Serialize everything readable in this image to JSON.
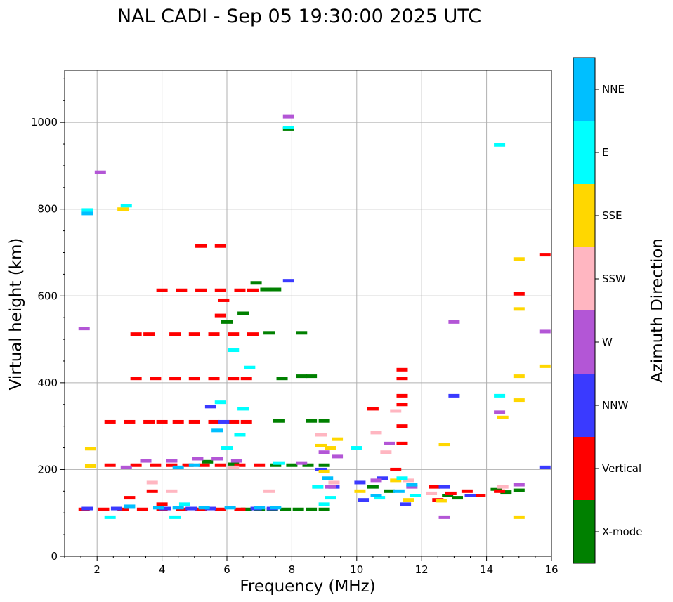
{
  "chart_data": {
    "type": "scatter",
    "title": "NAL CADI - Sep 05 19:30:00 2025 UTC",
    "xlabel": "Frequency (MHz)",
    "ylabel": "Virtual height (km)",
    "xlim": [
      1,
      16
    ],
    "ylim": [
      0,
      1120
    ],
    "xticks": [
      "2",
      "4",
      "6",
      "8",
      "10",
      "12",
      "14",
      "16"
    ],
    "yticks": [
      "0",
      "200",
      "400",
      "600",
      "800",
      "1000"
    ],
    "grid": true,
    "colorbar": {
      "label": "Azimuth Direction",
      "categories": [
        "X-mode",
        "Vertical",
        "NNW",
        "W",
        "SSW",
        "SSE",
        "E",
        "NNE"
      ],
      "colors": [
        "#008000",
        "#ff0000",
        "#3a3aff",
        "#b356d6",
        "#ffb6c1",
        "#ffd700",
        "#00ffff",
        "#00bfff"
      ]
    },
    "series": [
      {
        "name": "X-mode",
        "points": [
          [
            6.6,
            108
          ],
          [
            7.0,
            108
          ],
          [
            7.4,
            108
          ],
          [
            7.8,
            108
          ],
          [
            8.2,
            108
          ],
          [
            8.6,
            108
          ],
          [
            9.0,
            108
          ],
          [
            8.0,
            210
          ],
          [
            8.5,
            210
          ],
          [
            9.0,
            210
          ],
          [
            7.5,
            210
          ],
          [
            7.3,
            515
          ],
          [
            8.3,
            515
          ],
          [
            8.6,
            415
          ],
          [
            8.3,
            415
          ],
          [
            7.7,
            410
          ],
          [
            9.0,
            312
          ],
          [
            8.6,
            312
          ],
          [
            7.6,
            312
          ],
          [
            6.0,
            540
          ],
          [
            6.5,
            560
          ],
          [
            5.4,
            218
          ],
          [
            6.2,
            212
          ],
          [
            11.0,
            150
          ],
          [
            14.3,
            155
          ],
          [
            14.6,
            148
          ],
          [
            12.8,
            140
          ],
          [
            13.1,
            135
          ],
          [
            15.0,
            152
          ],
          [
            7.2,
            615
          ],
          [
            7.5,
            615
          ],
          [
            6.9,
            630
          ],
          [
            10.5,
            160
          ],
          [
            7.9,
            985
          ]
        ]
      },
      {
        "name": "Vertical",
        "points": [
          [
            1.6,
            108
          ],
          [
            2.2,
            108
          ],
          [
            2.8,
            108
          ],
          [
            3.4,
            108
          ],
          [
            4.0,
            108
          ],
          [
            4.6,
            108
          ],
          [
            5.2,
            108
          ],
          [
            5.8,
            108
          ],
          [
            6.4,
            108
          ],
          [
            2.4,
            210
          ],
          [
            3.2,
            210
          ],
          [
            3.8,
            210
          ],
          [
            4.3,
            210
          ],
          [
            4.8,
            210
          ],
          [
            5.3,
            210
          ],
          [
            5.8,
            210
          ],
          [
            6.4,
            210
          ],
          [
            7.0,
            210
          ],
          [
            2.4,
            310
          ],
          [
            3.0,
            310
          ],
          [
            3.6,
            310
          ],
          [
            4.0,
            310
          ],
          [
            4.5,
            310
          ],
          [
            5.0,
            310
          ],
          [
            5.6,
            310
          ],
          [
            6.2,
            310
          ],
          [
            6.6,
            310
          ],
          [
            3.2,
            410
          ],
          [
            3.8,
            410
          ],
          [
            4.4,
            410
          ],
          [
            5.0,
            410
          ],
          [
            5.6,
            410
          ],
          [
            6.2,
            410
          ],
          [
            6.6,
            410
          ],
          [
            3.2,
            512
          ],
          [
            3.6,
            512
          ],
          [
            4.4,
            512
          ],
          [
            5.0,
            512
          ],
          [
            5.6,
            512
          ],
          [
            6.2,
            512
          ],
          [
            6.8,
            512
          ],
          [
            4.0,
            613
          ],
          [
            4.6,
            613
          ],
          [
            5.2,
            613
          ],
          [
            5.8,
            613
          ],
          [
            6.4,
            613
          ],
          [
            6.8,
            613
          ],
          [
            5.2,
            715
          ],
          [
            5.8,
            715
          ],
          [
            11.4,
            430
          ],
          [
            11.4,
            410
          ],
          [
            11.4,
            370
          ],
          [
            11.4,
            350
          ],
          [
            11.4,
            300
          ],
          [
            11.4,
            260
          ],
          [
            10.5,
            340
          ],
          [
            11.2,
            200
          ],
          [
            12.4,
            160
          ],
          [
            12.9,
            145
          ],
          [
            13.4,
            150
          ],
          [
            13.8,
            140
          ],
          [
            14.4,
            150
          ],
          [
            15.0,
            605
          ],
          [
            15.8,
            695
          ],
          [
            3.0,
            135
          ],
          [
            3.7,
            150
          ],
          [
            4.0,
            120
          ],
          [
            5.9,
            590
          ],
          [
            5.8,
            555
          ],
          [
            12.5,
            130
          ]
        ]
      },
      {
        "name": "NNW",
        "points": [
          [
            1.7,
            110
          ],
          [
            2.6,
            110
          ],
          [
            4.1,
            110
          ],
          [
            4.9,
            110
          ],
          [
            5.5,
            110
          ],
          [
            6.9,
            110
          ],
          [
            7.4,
            110
          ],
          [
            5.5,
            345
          ],
          [
            9.3,
            160
          ],
          [
            10.2,
            130
          ],
          [
            10.8,
            180
          ],
          [
            11.5,
            120
          ],
          [
            12.7,
            160
          ],
          [
            13.0,
            370
          ],
          [
            13.5,
            140
          ],
          [
            15.8,
            205
          ],
          [
            7.9,
            635
          ],
          [
            5.9,
            310
          ],
          [
            8.9,
            200
          ],
          [
            10.1,
            170
          ]
        ]
      },
      {
        "name": "W",
        "points": [
          [
            1.6,
            525
          ],
          [
            2.1,
            885
          ],
          [
            2.9,
            205
          ],
          [
            3.5,
            220
          ],
          [
            4.3,
            220
          ],
          [
            5.1,
            225
          ],
          [
            5.7,
            225
          ],
          [
            6.3,
            220
          ],
          [
            9.0,
            240
          ],
          [
            9.4,
            230
          ],
          [
            10.6,
            175
          ],
          [
            11.0,
            260
          ],
          [
            13.0,
            540
          ],
          [
            12.7,
            90
          ],
          [
            14.4,
            332
          ],
          [
            15.0,
            165
          ],
          [
            15.8,
            518
          ],
          [
            7.9,
            1013
          ],
          [
            9.2,
            160
          ],
          [
            11.7,
            160
          ],
          [
            8.3,
            215
          ]
        ]
      },
      {
        "name": "SSW",
        "points": [
          [
            3.7,
            170
          ],
          [
            4.3,
            150
          ],
          [
            6.2,
            205
          ],
          [
            7.3,
            150
          ],
          [
            8.9,
            280
          ],
          [
            9.3,
            170
          ],
          [
            10.9,
            240
          ],
          [
            11.2,
            335
          ],
          [
            11.6,
            175
          ],
          [
            12.3,
            145
          ],
          [
            14.5,
            160
          ],
          [
            10.6,
            285
          ],
          [
            8.8,
            160
          ]
        ]
      },
      {
        "name": "SSE",
        "points": [
          [
            1.8,
            248
          ],
          [
            1.8,
            208
          ],
          [
            2.8,
            800
          ],
          [
            8.9,
            255
          ],
          [
            9.2,
            250
          ],
          [
            9.4,
            270
          ],
          [
            11.2,
            175
          ],
          [
            12.7,
            258
          ],
          [
            12.6,
            128
          ],
          [
            14.5,
            320
          ],
          [
            15.0,
            685
          ],
          [
            15.0,
            570
          ],
          [
            15.0,
            415
          ],
          [
            15.0,
            360
          ],
          [
            15.8,
            438
          ],
          [
            15.0,
            90
          ],
          [
            11.6,
            130
          ],
          [
            9.0,
            195
          ],
          [
            10.1,
            150
          ]
        ]
      },
      {
        "name": "E",
        "points": [
          [
            1.7,
            798
          ],
          [
            2.9,
            808
          ],
          [
            4.4,
            90
          ],
          [
            5.8,
            355
          ],
          [
            6.2,
            475
          ],
          [
            6.7,
            435
          ],
          [
            6.5,
            340
          ],
          [
            6.4,
            280
          ],
          [
            9.2,
            135
          ],
          [
            9.0,
            120
          ],
          [
            10.0,
            250
          ],
          [
            10.7,
            135
          ],
          [
            11.4,
            180
          ],
          [
            11.8,
            140
          ],
          [
            14.4,
            948
          ],
          [
            14.4,
            370
          ],
          [
            7.9,
            988
          ],
          [
            8.8,
            160
          ],
          [
            6.0,
            250
          ],
          [
            7.6,
            215
          ],
          [
            2.4,
            90
          ],
          [
            4.7,
            120
          ]
        ]
      },
      {
        "name": "NNE",
        "points": [
          [
            1.7,
            790
          ],
          [
            3.0,
            115
          ],
          [
            3.9,
            112
          ],
          [
            4.5,
            112
          ],
          [
            5.3,
            112
          ],
          [
            6.1,
            112
          ],
          [
            7.0,
            112
          ],
          [
            7.5,
            112
          ],
          [
            9.1,
            180
          ],
          [
            10.6,
            140
          ],
          [
            11.3,
            150
          ],
          [
            11.7,
            165
          ],
          [
            5.7,
            290
          ],
          [
            4.5,
            205
          ],
          [
            5.0,
            210
          ]
        ]
      }
    ]
  }
}
